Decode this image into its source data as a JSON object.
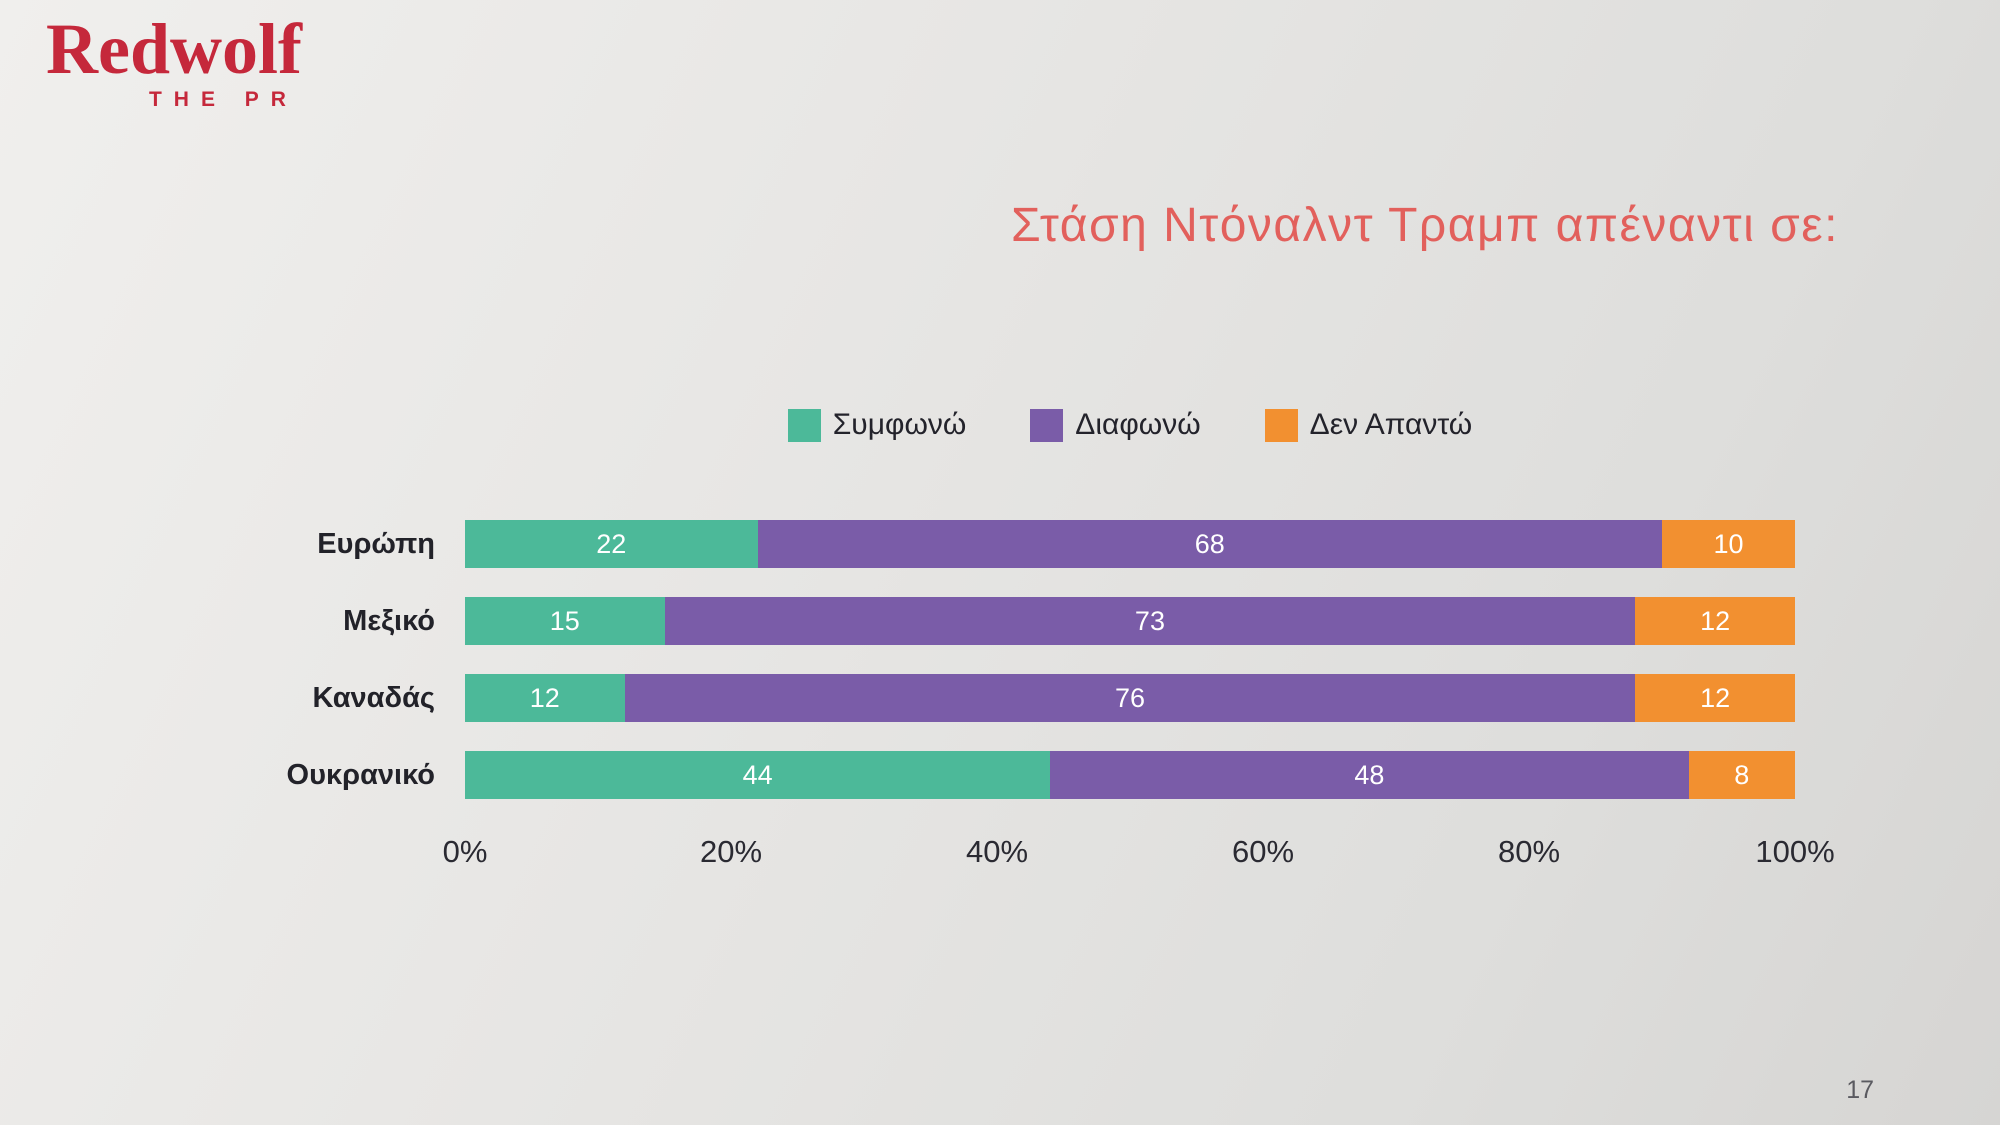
{
  "logo": {
    "brand": "Redwolf",
    "subtitle": "THE PR",
    "color": "#c5283b"
  },
  "title": {
    "text": "Στάση Ντόναλντ Τραμπ απέναντι σε:",
    "color": "#e2605c"
  },
  "footer": {
    "page_number": "17"
  },
  "chart_data": {
    "type": "bar",
    "orientation": "horizontal",
    "stacked": true,
    "title": "Στάση Ντόναλντ Τραμπ απέναντι σε:",
    "categories": [
      "Ευρώπη",
      "Μεξικό",
      "Καναδάς",
      "Ουκρανικό"
    ],
    "series": [
      {
        "name": "Συμφωνώ",
        "color": "#4cb999",
        "values": [
          22,
          15,
          12,
          44
        ]
      },
      {
        "name": "Διαφωνώ",
        "color": "#7a5ca8",
        "values": [
          68,
          73,
          76,
          48
        ]
      },
      {
        "name": "Δεν Απαντώ",
        "color": "#f29030",
        "values": [
          10,
          12,
          12,
          8
        ]
      }
    ],
    "x_ticks": [
      "0%",
      "20%",
      "40%",
      "60%",
      "80%",
      "100%"
    ],
    "xlim": [
      0,
      100
    ],
    "value_labels": "inside",
    "legend_position": "top-center",
    "grid": false
  }
}
